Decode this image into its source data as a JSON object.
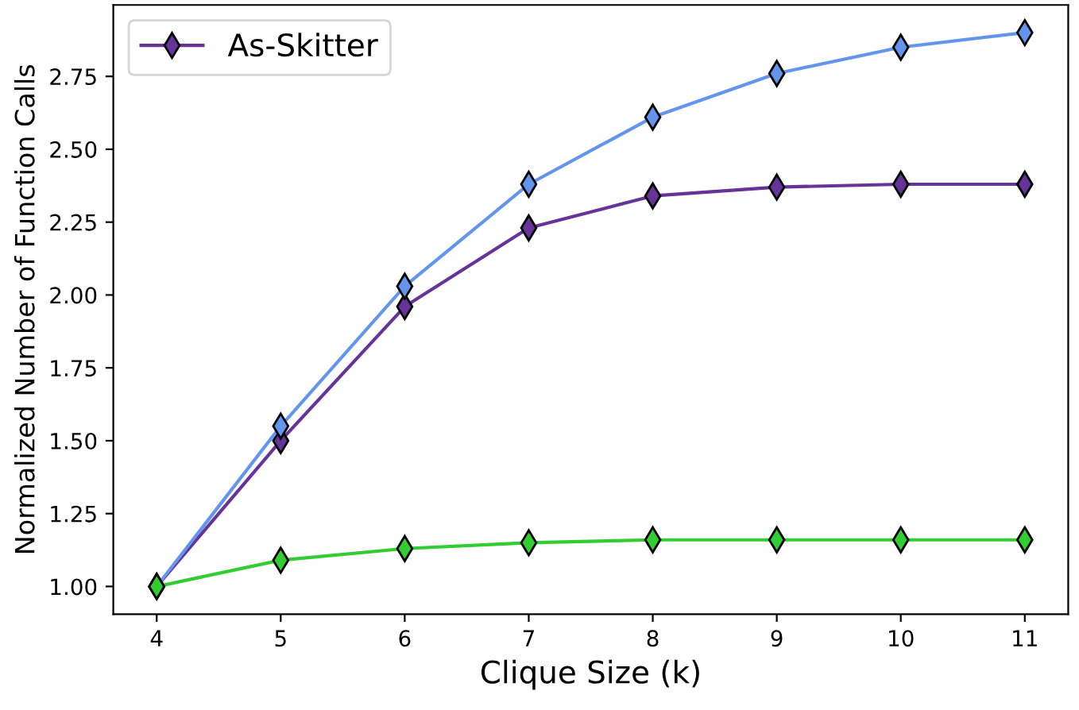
{
  "chart_data": {
    "type": "line",
    "xlabel": "Clique Size (k)",
    "ylabel": "Normalized Number of Function Calls",
    "x": [
      4,
      5,
      6,
      7,
      8,
      9,
      10,
      11
    ],
    "series": [
      {
        "name": "As-Skitter",
        "color": "#663399",
        "values": [
          1.0,
          1.5,
          1.96,
          2.23,
          2.34,
          2.37,
          2.38,
          2.38
        ]
      },
      {
        "color": "#6495ed",
        "values": [
          1.0,
          1.55,
          2.03,
          2.38,
          2.61,
          2.76,
          2.85,
          2.9
        ]
      },
      {
        "color": "#32cd32",
        "values": [
          1.0,
          1.09,
          1.13,
          1.15,
          1.16,
          1.16,
          1.16,
          1.16
        ]
      }
    ],
    "xlim": [
      3.65,
      11.35
    ],
    "ylim": [
      0.905,
      2.995
    ],
    "xticks": [
      4,
      5,
      6,
      7,
      8,
      9,
      10,
      11
    ],
    "yticks": [
      {
        "value": 1.0,
        "label": "1.00"
      },
      {
        "value": 1.25,
        "label": "1.25"
      },
      {
        "value": 1.5,
        "label": "1.50"
      },
      {
        "value": 1.75,
        "label": "1.75"
      },
      {
        "value": 2.0,
        "label": "2.00"
      },
      {
        "value": 2.25,
        "label": "2.25"
      },
      {
        "value": 2.5,
        "label": "2.50"
      },
      {
        "value": 2.75,
        "label": "2.75"
      }
    ],
    "marker": "diamond",
    "line_style": "solid",
    "legend": "top left",
    "grid": false
  }
}
